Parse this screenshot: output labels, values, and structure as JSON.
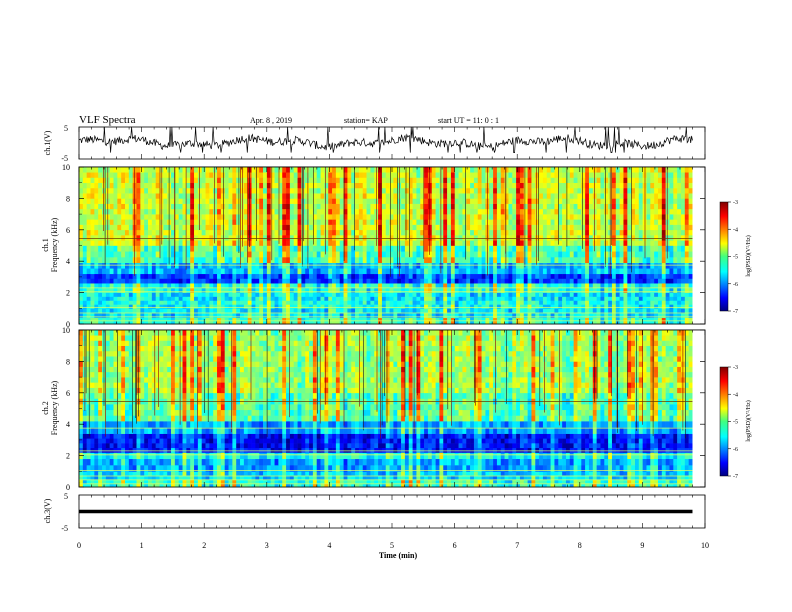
{
  "header": {
    "title": "VLF Spectra",
    "date": "Apr. 8 , 2019",
    "station": "station= KAP",
    "start": "start  UT =  11: 0  : 1"
  },
  "chart_data": [
    {
      "type": "line",
      "panel": "ch1-waveform",
      "ylabel": "ch.1(V)",
      "ylim": [
        -5,
        5
      ],
      "yticks": [
        "5",
        "-5"
      ],
      "xlim": [
        0,
        10
      ],
      "series": [
        {
          "values_note": "noisy voltage trace",
          "x_range": [
            0,
            9.8
          ],
          "mean": 0.2,
          "min": -5,
          "max": 5
        }
      ]
    },
    {
      "type": "heatmap",
      "panel": "ch1-spectrogram",
      "ylabel": "ch.1\nFrequency (kHz)",
      "ylim": [
        0,
        10
      ],
      "yticks": [
        "0",
        "2",
        "4",
        "6",
        "8",
        "10"
      ],
      "xlim": [
        0,
        9.8
      ],
      "colorbar": {
        "label": "log(PSD)(V²/Hz)",
        "range": [
          -7,
          -3
        ],
        "ticks": [
          "-3",
          "-4",
          "-5",
          "-6",
          "-7"
        ]
      },
      "bands": [
        {
          "from": 0.0,
          "to": 0.4,
          "level": -5.3
        },
        {
          "from": 0.4,
          "to": 1.0,
          "level": -5.6
        },
        {
          "from": 1.0,
          "to": 1.5,
          "level": -5.5
        },
        {
          "from": 1.5,
          "to": 2.0,
          "level": -5.6
        },
        {
          "from": 2.0,
          "to": 2.6,
          "level": -5.4
        },
        {
          "from": 2.6,
          "to": 3.2,
          "level": -6.3
        },
        {
          "from": 3.2,
          "to": 3.9,
          "level": -5.8
        },
        {
          "from": 3.9,
          "to": 5.0,
          "level": -5.2
        },
        {
          "from": 5.0,
          "to": 10.0,
          "level": -4.7
        }
      ]
    },
    {
      "type": "heatmap",
      "panel": "ch2-spectrogram",
      "ylabel": "ch.2\nFrequency (kHz)",
      "ylim": [
        0,
        10
      ],
      "yticks": [
        "0",
        "2",
        "4",
        "6",
        "8",
        "10"
      ],
      "xlim": [
        0,
        9.8
      ],
      "colorbar": {
        "label": "log(PSD)(V²/Hz)",
        "range": [
          -7,
          -3
        ],
        "ticks": [
          "-3",
          "-4",
          "-5",
          "-6",
          "-7"
        ]
      },
      "bands": [
        {
          "from": 0.0,
          "to": 0.5,
          "level": -5.4
        },
        {
          "from": 0.5,
          "to": 1.0,
          "level": -5.7
        },
        {
          "from": 1.0,
          "to": 1.8,
          "level": -5.9
        },
        {
          "from": 1.8,
          "to": 2.2,
          "level": -5.5
        },
        {
          "from": 2.2,
          "to": 3.4,
          "level": -6.5
        },
        {
          "from": 3.4,
          "to": 4.2,
          "level": -5.9
        },
        {
          "from": 4.2,
          "to": 6.0,
          "level": -5.2
        },
        {
          "from": 6.0,
          "to": 10.0,
          "level": -4.9
        }
      ]
    },
    {
      "type": "line",
      "panel": "ch3-waveform",
      "ylabel": "ch.3(V)",
      "ylim": [
        -5,
        5
      ],
      "yticks": [
        "5",
        "-5"
      ],
      "xlim": [
        0,
        10
      ],
      "xlabel": "Time  (min)",
      "xticks": [
        "0",
        "1",
        "2",
        "3",
        "4",
        "5",
        "6",
        "7",
        "8",
        "9",
        "10"
      ],
      "series": [
        {
          "values_note": "flat trace",
          "x_range": [
            0,
            9.8
          ],
          "mean": 0.0
        }
      ]
    }
  ]
}
